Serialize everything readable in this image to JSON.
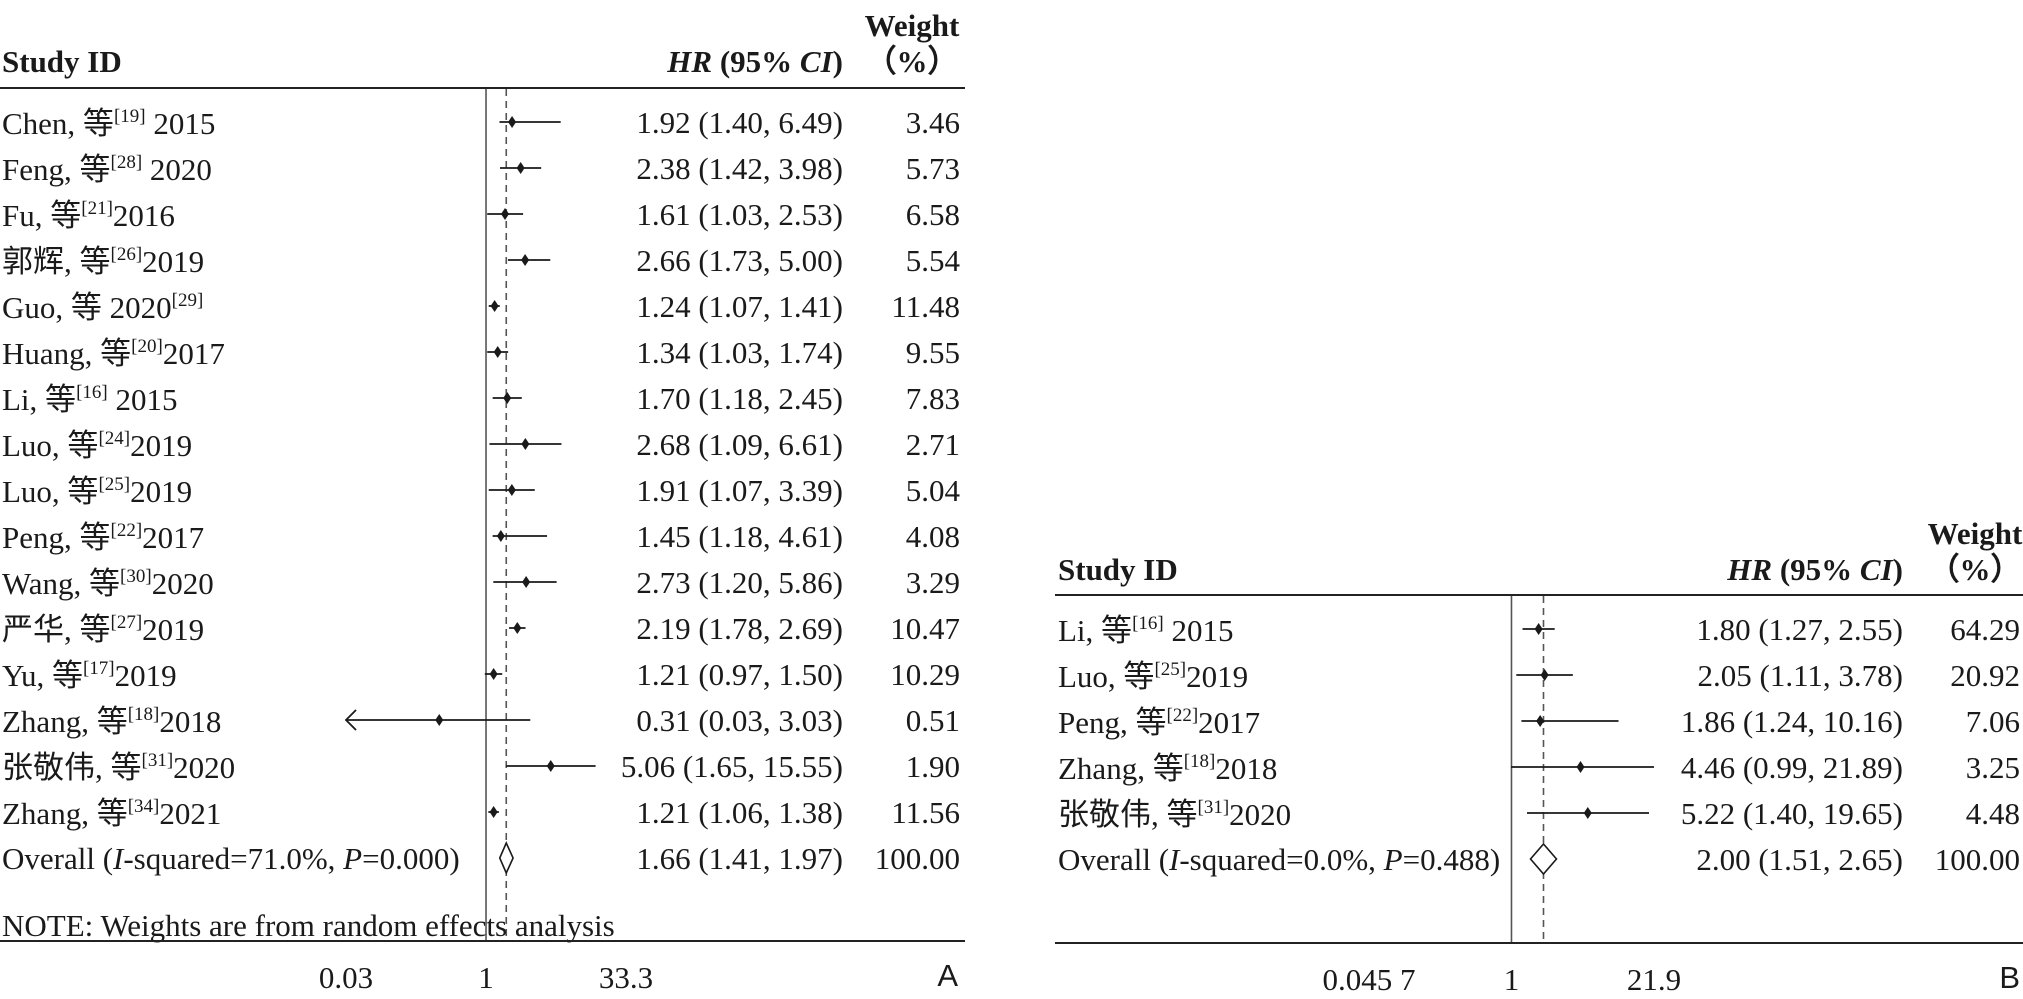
{
  "chart_data": [
    {
      "type": "forest",
      "panel_label": "A",
      "headers": {
        "study": "Study ID",
        "effect_em": "HR",
        "effect_ci": "(95% ",
        "effect_ci_em": "CI",
        "effect_close": ")",
        "weight_line1": "Weight",
        "weight_line2": "（%）"
      },
      "axis": {
        "scale": "log",
        "ticks": [
          "0.03",
          "1",
          "33.3"
        ],
        "tick_values": [
          0.03,
          1,
          33.3
        ],
        "null_value": 1,
        "pooled_reference": 1.66
      },
      "studies": [
        {
          "name": "Chen, 等",
          "ref": "[19]",
          "year": " 2015",
          "hr": 1.92,
          "lo": 1.4,
          "hi": 6.49,
          "ci_text": "1.92 (1.40, 6.49)",
          "weight": "3.46"
        },
        {
          "name": "Feng, 等",
          "ref": "[28]",
          "year": " 2020",
          "hr": 2.38,
          "lo": 1.42,
          "hi": 3.98,
          "ci_text": "2.38 (1.42, 3.98)",
          "weight": "5.73"
        },
        {
          "name": "Fu, 等",
          "ref": "[21]",
          "year": "2016",
          "hr": 1.61,
          "lo": 1.03,
          "hi": 2.53,
          "ci_text": "1.61 (1.03, 2.53)",
          "weight": "6.58"
        },
        {
          "name": "郭辉, 等",
          "ref": "[26]",
          "year": "2019",
          "hr": 2.66,
          "lo": 1.73,
          "hi": 5.0,
          "ci_text": "2.66 (1.73, 5.00)",
          "weight": "5.54"
        },
        {
          "name": "Guo, 等 2020",
          "ref": "[29]",
          "year": "",
          "hr": 1.24,
          "lo": 1.07,
          "hi": 1.41,
          "ci_text": "1.24 (1.07, 1.41)",
          "weight": "11.48"
        },
        {
          "name": "Huang, 等",
          "ref": "[20]",
          "year": "2017",
          "hr": 1.34,
          "lo": 1.03,
          "hi": 1.74,
          "ci_text": "1.34 (1.03, 1.74)",
          "weight": "9.55"
        },
        {
          "name": "Li, 等",
          "ref": "[16]",
          "year": " 2015",
          "hr": 1.7,
          "lo": 1.18,
          "hi": 2.45,
          "ci_text": "1.70 (1.18, 2.45)",
          "weight": "7.83"
        },
        {
          "name": "Luo, 等",
          "ref": "[24]",
          "year": "2019",
          "hr": 2.68,
          "lo": 1.09,
          "hi": 6.61,
          "ci_text": "2.68 (1.09, 6.61)",
          "weight": "2.71"
        },
        {
          "name": "Luo, 等",
          "ref": "[25]",
          "year": "2019",
          "hr": 1.91,
          "lo": 1.07,
          "hi": 3.39,
          "ci_text": "1.91 (1.07, 3.39)",
          "weight": "5.04"
        },
        {
          "name": "Peng, 等",
          "ref": "[22]",
          "year": "2017",
          "hr": 1.45,
          "lo": 1.18,
          "hi": 4.61,
          "ci_text": "1.45 (1.18, 4.61)",
          "weight": "4.08"
        },
        {
          "name": "Wang, 等",
          "ref": "[30]",
          "year": "2020",
          "hr": 2.73,
          "lo": 1.2,
          "hi": 5.86,
          "ci_text": "2.73 (1.20, 5.86)",
          "weight": "3.29"
        },
        {
          "name": "严华, 等",
          "ref": "[27]",
          "year": "2019",
          "hr": 2.19,
          "lo": 1.78,
          "hi": 2.69,
          "ci_text": "2.19 (1.78, 2.69)",
          "weight": "10.47"
        },
        {
          "name": "Yu, 等",
          "ref": "[17]",
          "year": "2019",
          "hr": 1.21,
          "lo": 0.97,
          "hi": 1.5,
          "ci_text": "1.21 (0.97, 1.50)",
          "weight": "10.29"
        },
        {
          "name": "Zhang, 等",
          "ref": "[18]",
          "year": "2018",
          "hr": 0.31,
          "lo": 0.03,
          "hi": 3.03,
          "ci_text": "0.31 (0.03, 3.03)",
          "weight": "0.51",
          "left_arrow": true
        },
        {
          "name": "张敬伟, 等",
          "ref": "[31]",
          "year": "2020",
          "hr": 5.06,
          "lo": 1.65,
          "hi": 15.55,
          "ci_text": "5.06 (1.65, 15.55)",
          "weight": "1.90"
        },
        {
          "name": "Zhang, 等",
          "ref": "[34]",
          "year": "2021",
          "hr": 1.21,
          "lo": 1.06,
          "hi": 1.38,
          "ci_text": "1.21 (1.06, 1.38)",
          "weight": "11.56"
        }
      ],
      "overall": {
        "label_pre": "Overall (",
        "label_i": "I",
        "label_mid": "-squared=71.0%, ",
        "label_p": "P",
        "label_post": "=0.000)",
        "hr": 1.66,
        "lo": 1.41,
        "hi": 1.97,
        "ci_text": "1.66 (1.41, 1.97)",
        "weight": "100.00"
      },
      "note": "NOTE: Weights are from random effects analysis"
    },
    {
      "type": "forest",
      "panel_label": "B",
      "headers": {
        "study": "Study ID",
        "effect_em": "HR",
        "effect_ci": "(95% ",
        "effect_ci_em": "CI",
        "effect_close": ")",
        "weight_line1": "Weight",
        "weight_line2": "（%）"
      },
      "axis": {
        "scale": "log",
        "ticks": [
          "0.045 7",
          "1",
          "21.9"
        ],
        "tick_values": [
          0.0457,
          1,
          21.9
        ],
        "null_value": 1,
        "pooled_reference": 2.0
      },
      "studies": [
        {
          "name": "Li, 等",
          "ref": "[16]",
          "year": " 2015",
          "hr": 1.8,
          "lo": 1.27,
          "hi": 2.55,
          "ci_text": "1.80 (1.27, 2.55)",
          "weight": "64.29"
        },
        {
          "name": "Luo, 等",
          "ref": "[25]",
          "year": "2019",
          "hr": 2.05,
          "lo": 1.11,
          "hi": 3.78,
          "ci_text": "2.05 (1.11, 3.78)",
          "weight": "20.92"
        },
        {
          "name": "Peng, 等",
          "ref": "[22]",
          "year": "2017",
          "hr": 1.86,
          "lo": 1.24,
          "hi": 10.16,
          "ci_text": "1.86 (1.24, 10.16)",
          "weight": "7.06"
        },
        {
          "name": "Zhang, 等",
          "ref": "[18]",
          "year": "2018",
          "hr": 4.46,
          "lo": 0.99,
          "hi": 21.89,
          "ci_text": "4.46 (0.99, 21.89)",
          "weight": "3.25"
        },
        {
          "name": "张敬伟, 等",
          "ref": "[31]",
          "year": "2020",
          "hr": 5.22,
          "lo": 1.4,
          "hi": 19.65,
          "ci_text": "5.22 (1.40, 19.65)",
          "weight": "4.48"
        }
      ],
      "overall": {
        "label_pre": "Overall (",
        "label_i": "I",
        "label_mid": "-squared=0.0%, ",
        "label_p": "P",
        "label_post": "=0.488)",
        "hr": 2.0,
        "lo": 1.51,
        "hi": 2.65,
        "ci_text": "2.00 (1.51, 2.65)",
        "weight": "100.00"
      },
      "note": ""
    }
  ]
}
